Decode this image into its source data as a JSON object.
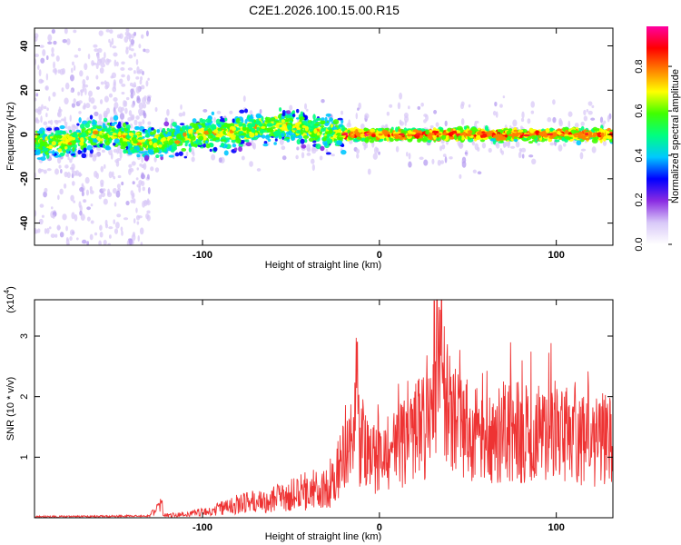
{
  "title": "C2E1.2026.100.15.00.R15",
  "chart_data": [
    {
      "type": "heatmap",
      "name": "spectrogram",
      "xlabel": "Height of straight line (km)",
      "ylabel": "Frequency (Hz)",
      "xlim": [
        -195,
        132
      ],
      "ylim": [
        -50,
        48
      ],
      "xticks": [
        -100,
        0,
        100
      ],
      "xtick_labels": [
        "-100",
        "0",
        "100"
      ],
      "yticks": [
        -40,
        -20,
        0,
        20,
        40
      ],
      "ytick_labels": [
        "-40",
        "-20",
        "0",
        "20",
        "40"
      ],
      "colorbar": {
        "label": "Normalized spectral amplitude",
        "range": [
          0.0,
          0.98
        ],
        "ticks": [
          0.0,
          0.2,
          0.4,
          0.6,
          0.8
        ],
        "tick_labels": [
          "0.0",
          "0.2",
          "0.4",
          "0.6",
          "0.8"
        ],
        "colors": [
          "#ffffff",
          "#d8c8f8",
          "#8a2be2",
          "#0000ff",
          "#00c8ff",
          "#00ff80",
          "#40ff00",
          "#ffff00",
          "#ff8000",
          "#ff0000",
          "#ff00a0"
        ]
      }
    },
    {
      "type": "line",
      "name": "snr",
      "xlabel": "Height of straight line (km)",
      "ylabel": "SNR (10 * v/v)",
      "yscale_label": "(x10",
      "yscale_exponent": "4",
      "xlim": [
        -195,
        132
      ],
      "ylim": [
        0,
        3.6
      ],
      "xticks": [
        -100,
        0,
        100
      ],
      "xtick_labels": [
        "-100",
        "0",
        "100"
      ],
      "yticks": [
        1,
        2,
        3
      ],
      "ytick_labels": [
        "1",
        "2",
        "3"
      ],
      "color": "#ee3333",
      "series": [
        {
          "name": "SNR",
          "x": [
            -195,
            -160,
            -130,
            -124,
            -122,
            -110,
            -95,
            -80,
            -70,
            -60,
            -50,
            -40,
            -30,
            -25,
            -20,
            -15,
            -13,
            -12,
            -5,
            0,
            10,
            20,
            30,
            31,
            40,
            50,
            60,
            70,
            80,
            90,
            100,
            110,
            115,
            120,
            125,
            132
          ],
          "y": [
            0.02,
            0.03,
            0.04,
            0.28,
            0.05,
            0.08,
            0.15,
            0.3,
            0.35,
            0.42,
            0.5,
            0.6,
            0.75,
            0.9,
            1.3,
            1.6,
            2.9,
            1.7,
            1.4,
            1.2,
            1.5,
            1.9,
            2.0,
            3.6,
            2.2,
            2.0,
            1.8,
            1.9,
            1.9,
            1.9,
            1.9,
            1.8,
            1.7,
            1.6,
            1.8,
            1.7
          ]
        }
      ]
    }
  ]
}
